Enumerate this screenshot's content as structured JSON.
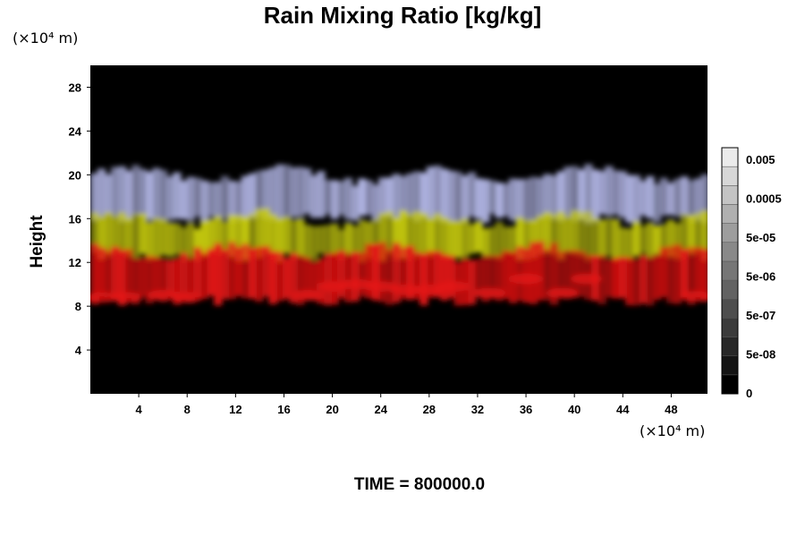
{
  "chart_data": {
    "type": "heatmap",
    "title": "Rain Mixing Ratio [kg/kg]",
    "xlabel": "",
    "ylabel": "Height",
    "x_unit": "(×10⁴ m)",
    "y_unit": "(×10⁴ m)",
    "xlim": [
      0,
      51
    ],
    "ylim": [
      0,
      30
    ],
    "x_ticks": [
      4,
      8,
      12,
      16,
      20,
      24,
      28,
      32,
      36,
      40,
      44,
      48
    ],
    "y_ticks": [
      4,
      8,
      12,
      16,
      20,
      24,
      28
    ],
    "colorbar": {
      "labels": [
        "0.005",
        "0.0005",
        "5e-05",
        "5e-06",
        "5e-07",
        "5e-08",
        "0"
      ],
      "levels": 13
    },
    "background_color": "#000000",
    "layers": [
      {
        "name": "cloud-top",
        "color": "#b4b8e8",
        "y_range": [
          16,
          20
        ]
      },
      {
        "name": "upper",
        "color": "#c8cc10",
        "y_range": [
          12.5,
          16
        ]
      },
      {
        "name": "lower",
        "color": "#e41414",
        "y_range": [
          8.5,
          13
        ]
      }
    ]
  },
  "footer": {
    "time_label": "TIME = 800000.0"
  }
}
